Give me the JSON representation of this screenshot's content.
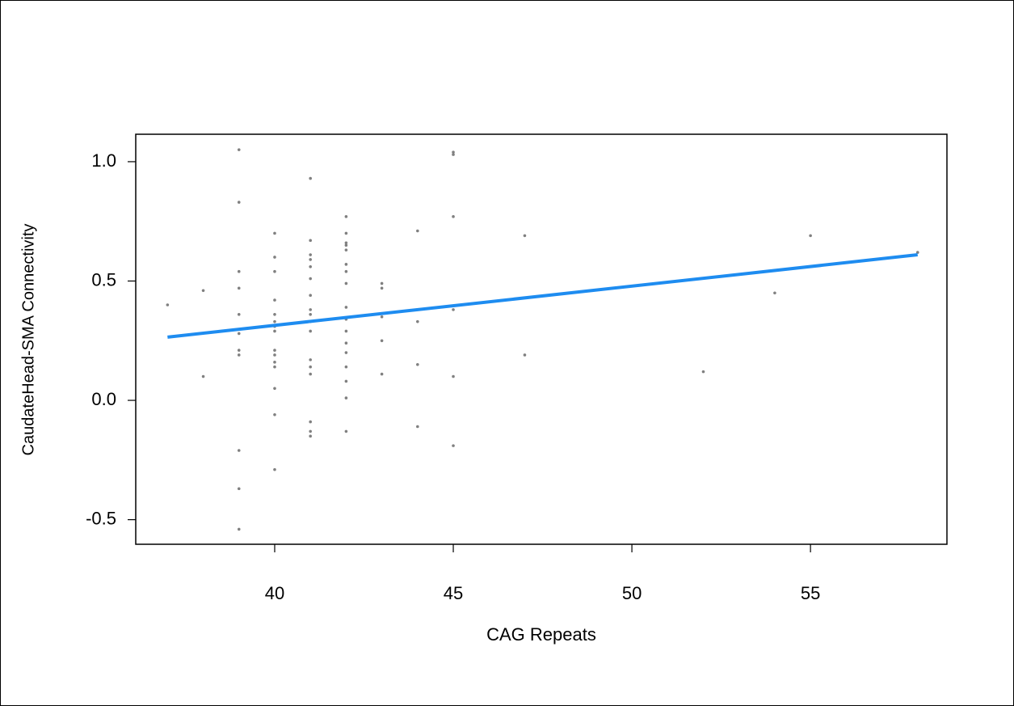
{
  "chart_data": {
    "type": "scatter",
    "xlabel": "CAG Repeats",
    "ylabel": "CaudateHead-SMA Connectivity",
    "x": [
      37,
      38,
      38,
      39,
      39,
      39,
      39,
      39,
      39,
      39,
      39,
      39,
      39,
      39,
      40,
      40,
      40,
      40,
      40,
      40,
      40,
      40,
      40,
      40,
      40,
      40,
      40,
      40,
      40,
      41,
      41,
      41,
      41,
      41,
      41,
      41,
      41,
      41,
      41,
      41,
      41,
      41,
      41,
      41,
      41,
      41,
      42,
      42,
      42,
      42,
      42,
      42,
      42,
      42,
      42,
      42,
      42,
      42,
      42,
      42,
      42,
      42,
      42,
      43,
      43,
      43,
      43,
      43,
      44,
      44,
      44,
      44,
      45,
      45,
      45,
      45,
      45,
      45,
      47,
      47,
      52,
      54,
      55,
      58
    ],
    "y": [
      0.4,
      0.46,
      0.1,
      1.05,
      0.83,
      0.54,
      0.47,
      0.36,
      0.28,
      0.21,
      0.19,
      -0.21,
      -0.37,
      -0.54,
      0.7,
      0.6,
      0.54,
      0.42,
      0.36,
      0.33,
      0.31,
      0.29,
      0.21,
      0.19,
      0.16,
      0.14,
      0.05,
      -0.06,
      -0.29,
      0.93,
      0.67,
      0.61,
      0.59,
      0.56,
      0.51,
      0.44,
      0.38,
      0.36,
      0.33,
      0.29,
      0.17,
      0.14,
      0.11,
      -0.09,
      -0.13,
      -0.15,
      0.77,
      0.7,
      0.66,
      0.65,
      0.63,
      0.57,
      0.54,
      0.49,
      0.39,
      0.34,
      0.29,
      0.24,
      0.2,
      0.14,
      0.08,
      0.01,
      -0.13,
      0.49,
      0.47,
      0.35,
      0.25,
      0.11,
      0.71,
      0.33,
      0.15,
      -0.11,
      1.04,
      1.03,
      0.77,
      0.38,
      0.1,
      -0.19,
      0.69,
      0.19,
      0.12,
      0.45,
      0.69,
      0.62
    ],
    "color": "#808080",
    "trend_line": {
      "x": [
        37,
        58
      ],
      "y": [
        0.265,
        0.61
      ],
      "color": "#1e8cf0"
    },
    "xlim": [
      36.11,
      58.82
    ],
    "ylim": [
      -0.603,
      1.115
    ],
    "xticks": [
      40,
      45,
      50,
      55
    ],
    "yticks": [
      {
        "value": -0.5,
        "label": "-0.5"
      },
      {
        "value": 0,
        "label": "0.0"
      },
      {
        "value": 0.5,
        "label": "0.5"
      },
      {
        "value": 1,
        "label": "1.0"
      }
    ]
  }
}
